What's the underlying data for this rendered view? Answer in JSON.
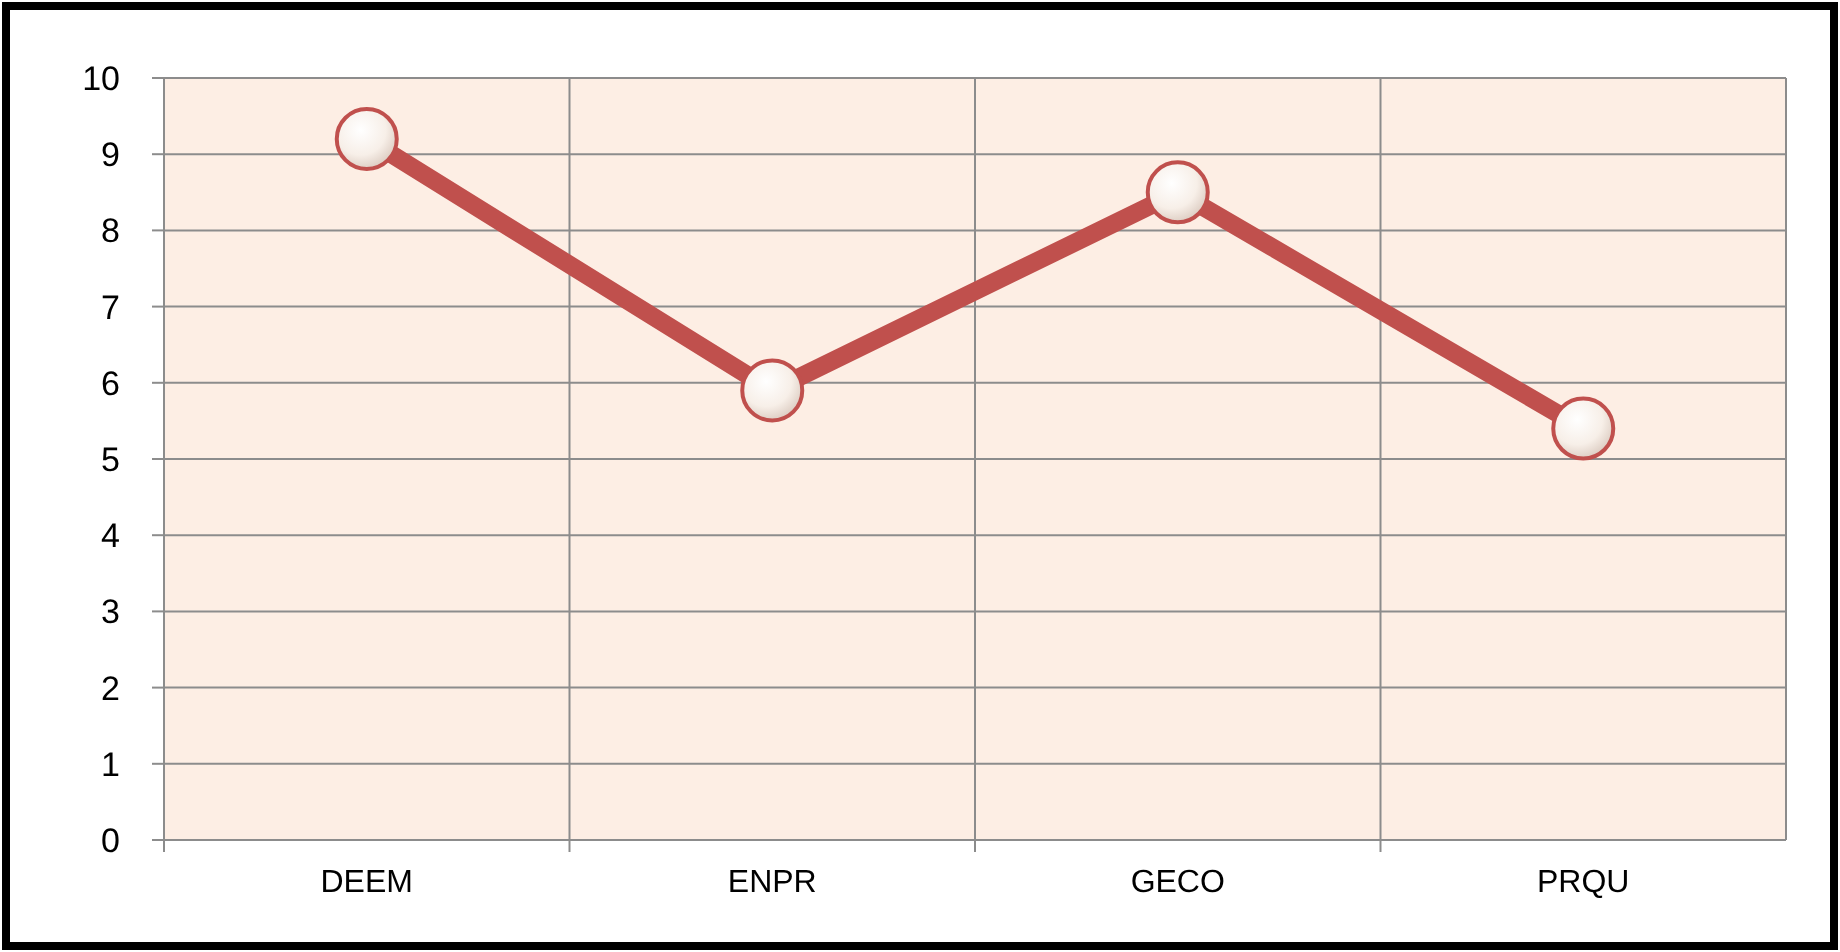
{
  "chart_data": {
    "type": "line",
    "categories": [
      "DEEM",
      "ENPR",
      "GECO",
      "PRQU"
    ],
    "series": [
      {
        "color": "#c0504d",
        "values": [
          9.2,
          5.9,
          8.5,
          5.4
        ]
      }
    ],
    "ylim": [
      0,
      10
    ],
    "yticks": [
      0,
      1,
      2,
      3,
      4,
      5,
      6,
      7,
      8,
      9,
      10
    ],
    "grid": true,
    "marker": "circle",
    "line_style": "solid"
  }
}
